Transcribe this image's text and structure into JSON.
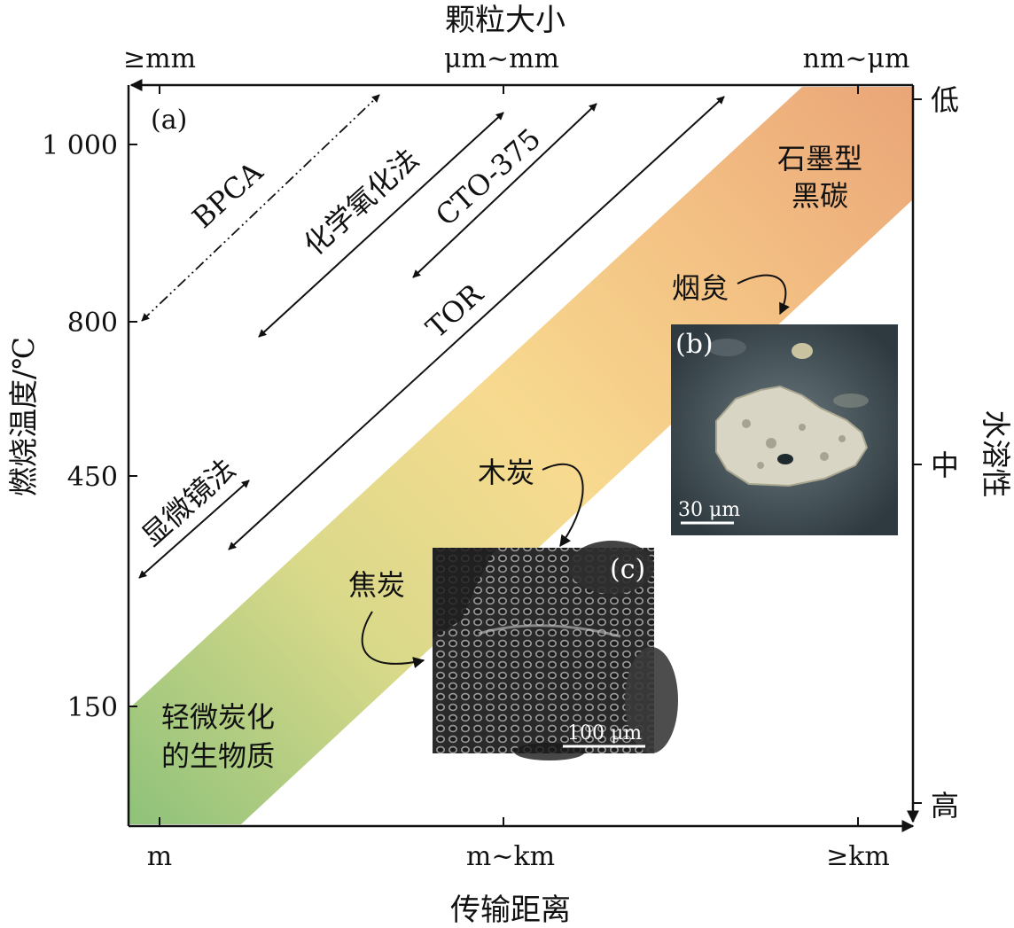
{
  "panel_label": "(a)",
  "axes": {
    "top_title": "颗粒大小",
    "top_ticks": [
      "≥mm",
      "μm~mm",
      "nm~μm"
    ],
    "left_title": "燃烧温度/℃",
    "left_ticks": [
      "1 000",
      "800",
      "450",
      "150"
    ],
    "right_title": "水溶性",
    "right_ticks": [
      "低",
      "中",
      "高"
    ],
    "bottom_title": "传输距离",
    "bottom_ticks": [
      "m",
      "m~km",
      "≥km"
    ]
  },
  "methods": {
    "bpca": "BPCA",
    "chemical": "化学氧化法",
    "cto": "CTO-375",
    "tor": "TOR",
    "microscope": "显微镜法"
  },
  "continuum": {
    "graphitic": [
      "石墨型",
      "黑碳"
    ],
    "biomass": [
      "轻微炭化",
      "的生物质"
    ],
    "soot": "烟炱",
    "charcoal": "木炭",
    "char": "焦炭"
  },
  "insets": {
    "b": {
      "label": "(b)",
      "scale": "30 μm"
    },
    "c": {
      "label": "(c)",
      "scale": "100 μm"
    }
  },
  "colors": {
    "band_low": "#8fc27a",
    "band_mid": "#f6d38e",
    "band_high": "#ecab7a",
    "line": "#111111"
  }
}
